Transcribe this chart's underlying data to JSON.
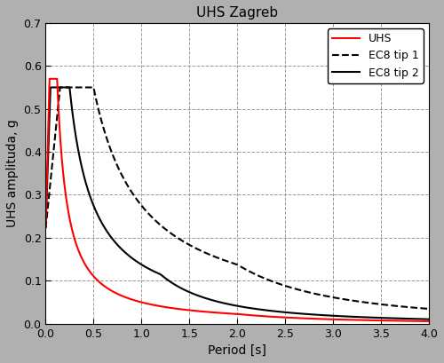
{
  "title": "UHS Zagreb",
  "xlabel": "Period [s]",
  "ylabel": "UHS amplituda, g",
  "xlim": [
    0,
    4
  ],
  "ylim": [
    0,
    0.7
  ],
  "xticks": [
    0,
    0.5,
    1,
    1.5,
    2,
    2.5,
    3,
    3.5,
    4
  ],
  "yticks": [
    0,
    0.1,
    0.2,
    0.3,
    0.4,
    0.5,
    0.6,
    0.7
  ],
  "figure_bg_color": "#b0b0b0",
  "plot_bg_color": "#ffffff",
  "legend_labels": [
    "UHS",
    "EC8 tip 1",
    "EC8 tip 2"
  ],
  "grid_color": "#aaaaaa",
  "ec8_type1": {
    "ag": 0.22,
    "TB": 0.15,
    "TC": 0.5,
    "TD": 2.0,
    "peak": 0.55
  },
  "ec8_type2": {
    "ag": 0.22,
    "TB": 0.05,
    "TC": 0.25,
    "TD": 1.2,
    "peak": 0.55
  },
  "uhs": {
    "ag": 0.22,
    "TB": 0.04,
    "TC": 0.12,
    "TD": 2.0,
    "peak": 0.57
  }
}
